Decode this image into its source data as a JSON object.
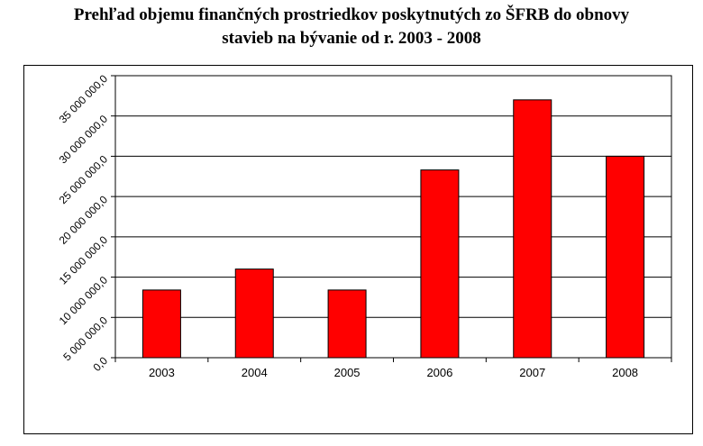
{
  "title_line1": "Prehľad objemu finančných prostriedkov poskytnutých zo ŠFRB do obnovy",
  "title_line2": "stavieb na bývanie od r. 2003 - 2008",
  "chart_data": {
    "type": "bar",
    "title": "Prehľad objemu finančných prostriedkov poskytnutých zo ŠFRB do obnovy stavieb na bývanie od r. 2003 - 2008",
    "categories": [
      "2003",
      "2004",
      "2005",
      "2006",
      "2007",
      "2008"
    ],
    "values": [
      8400000,
      11000000,
      8400000,
      23300000,
      32000000,
      25000000
    ],
    "ylim": [
      0,
      35000000
    ],
    "yticks": [
      0,
      5000000,
      10000000,
      15000000,
      20000000,
      25000000,
      30000000,
      35000000
    ],
    "ytick_labels": [
      "0,0",
      "5 000 000,0",
      "10 000 000,0",
      "15 000 000,0",
      "20 000 000,0",
      "25 000 000,0",
      "30 000 000,0",
      "35 000 000,0"
    ],
    "xlabel": "",
    "ylabel": "",
    "grid": true,
    "bar_color": "#ff0000"
  }
}
